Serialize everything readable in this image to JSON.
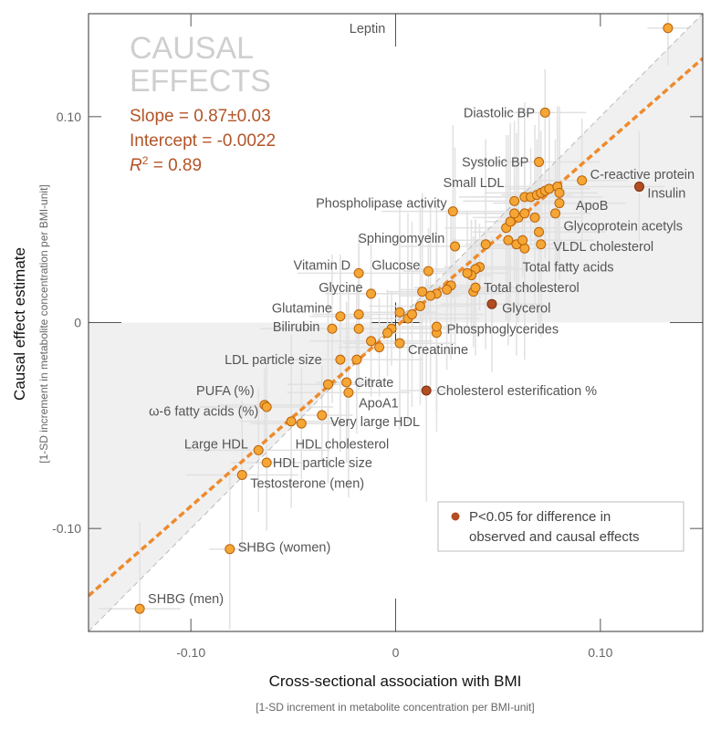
{
  "chart_data": {
    "type": "scatter",
    "xlabel": "Cross-sectional association with BMI",
    "xlabel_sub": "[1-SD increment in metabolite concentration per BMI-unit]",
    "ylabel": "Causal effect estimate",
    "ylabel_sub": "[1-SD increment in metabolite concentration per BMI-unit]",
    "xlim": [
      -0.15,
      0.15
    ],
    "ylim": [
      -0.15,
      0.15
    ],
    "x_ticks": [
      {
        "v": -0.1,
        "label": "-0.10"
      },
      {
        "v": 0,
        "label": "0"
      },
      {
        "v": 0.1,
        "label": "0.10"
      }
    ],
    "y_ticks": [
      {
        "v": 0.1,
        "label": "0.10"
      },
      {
        "v": 0,
        "label": "0"
      },
      {
        "v": -0.1,
        "label": "-0.10"
      }
    ],
    "annotation": {
      "title_line1": "CAUSAL",
      "title_line2": "EFFECTS",
      "slope": "Slope = 0.87±0.03",
      "intercept": "Intercept = -0.0022",
      "r2_prefix": "R",
      "r2_sup": "2",
      "r2_value": " = 0.89"
    },
    "legend": {
      "line1": "P<0.05 for difference in",
      "line2": "observed and causal effects",
      "position": "bottom-right"
    },
    "regression": {
      "slope": 0.87,
      "intercept": -0.0022
    },
    "identity_line": true,
    "colors": {
      "point_fill": "#f5a634",
      "point_stroke": "#b8620c",
      "significant_fill": "#b34d22",
      "regression": "#ee8a2c",
      "annotation_text": "#b35428",
      "title_text": "#cfcfcf",
      "label_text": "#555555",
      "shade": "#f0f0f0"
    },
    "points": [
      {
        "x": 0.133,
        "y": 0.143,
        "label": "Leptin",
        "lx": -0.005,
        "ly": 0.143,
        "anchor": "end"
      },
      {
        "x": 0.073,
        "y": 0.102,
        "label": "Diastolic BP",
        "lx": 0.068,
        "ly": 0.102,
        "anchor": "end"
      },
      {
        "x": 0.07,
        "y": 0.078,
        "label": "Systolic BP",
        "lx": 0.065,
        "ly": 0.078,
        "anchor": "end"
      },
      {
        "x": 0.119,
        "y": 0.066,
        "label": "Insulin",
        "sig": true,
        "lx": 0.123,
        "ly": 0.063,
        "anchor": "start"
      },
      {
        "x": 0.091,
        "y": 0.069,
        "label": "C-reactive protein",
        "lx": 0.095,
        "ly": 0.072,
        "anchor": "start"
      },
      {
        "x": 0.08,
        "y": 0.058,
        "label": "ApoB",
        "lx": 0.088,
        "ly": 0.057,
        "anchor": "start"
      },
      {
        "x": 0.078,
        "y": 0.053,
        "label": "Glycoprotein acetyls",
        "lx": 0.082,
        "ly": 0.047,
        "anchor": "start"
      },
      {
        "x": 0.058,
        "y": 0.059,
        "label": "Small LDL",
        "lx": 0.053,
        "ly": 0.068,
        "anchor": "end"
      },
      {
        "x": 0.028,
        "y": 0.054,
        "label": "Phospholipase activity",
        "lx": 0.025,
        "ly": 0.058,
        "anchor": "end"
      },
      {
        "x": 0.071,
        "y": 0.038,
        "label": "VLDL cholesterol",
        "lx": 0.077,
        "ly": 0.037,
        "anchor": "start"
      },
      {
        "x": 0.029,
        "y": 0.037,
        "label": "Sphingomyelin",
        "lx": 0.024,
        "ly": 0.041,
        "anchor": "end"
      },
      {
        "x": 0.044,
        "y": 0.038,
        "label": "",
        "lx": 0,
        "ly": 0
      },
      {
        "x": 0.063,
        "y": 0.036,
        "label": "Total fatty acids",
        "lx": 0.062,
        "ly": 0.027,
        "anchor": "start"
      },
      {
        "x": -0.018,
        "y": 0.024,
        "label": "Vitamin D",
        "lx": -0.022,
        "ly": 0.028,
        "anchor": "end"
      },
      {
        "x": 0.016,
        "y": 0.025,
        "label": "Glucose",
        "lx": 0.012,
        "ly": 0.028,
        "anchor": "end"
      },
      {
        "x": -0.012,
        "y": 0.014,
        "label": "Glycine",
        "lx": -0.016,
        "ly": 0.017,
        "anchor": "end"
      },
      {
        "x": 0.038,
        "y": 0.015,
        "label": "Total cholesterol",
        "lx": 0.043,
        "ly": 0.017,
        "anchor": "start"
      },
      {
        "x": -0.027,
        "y": 0.003,
        "label": "Glutamine",
        "lx": -0.031,
        "ly": 0.007,
        "anchor": "end"
      },
      {
        "x": 0.047,
        "y": 0.009,
        "label": "Glycerol",
        "sig": true,
        "lx": 0.052,
        "ly": 0.007,
        "anchor": "start"
      },
      {
        "x": -0.031,
        "y": -0.003,
        "label": "Bilirubin",
        "lx": -0.037,
        "ly": -0.002,
        "anchor": "end"
      },
      {
        "x": 0.02,
        "y": -0.005,
        "label": "Phosphoglycerides",
        "lx": 0.025,
        "ly": -0.003,
        "anchor": "start"
      },
      {
        "x": 0.002,
        "y": -0.01,
        "label": "Creatinine",
        "lx": 0.006,
        "ly": -0.013,
        "anchor": "start"
      },
      {
        "x": -0.027,
        "y": -0.018,
        "label": "LDL particle size",
        "lx": -0.036,
        "ly": -0.018,
        "anchor": "end"
      },
      {
        "x": -0.033,
        "y": -0.03,
        "label": "Citrate",
        "lx": -0.02,
        "ly": -0.029,
        "anchor": "start"
      },
      {
        "x": -0.023,
        "y": -0.034,
        "label": "ApoA1",
        "lx": -0.018,
        "ly": -0.039,
        "anchor": "start"
      },
      {
        "x": 0.015,
        "y": -0.033,
        "label": "Cholesterol esterification %",
        "sig": true,
        "lx": 0.02,
        "ly": -0.033,
        "anchor": "start"
      },
      {
        "x": -0.064,
        "y": -0.04,
        "label": "PUFA (%)",
        "lx": -0.069,
        "ly": -0.033,
        "anchor": "end"
      },
      {
        "x": -0.063,
        "y": -0.041,
        "label": "ω-6 fatty acids (%)",
        "lx": -0.067,
        "ly": -0.043,
        "anchor": "end"
      },
      {
        "x": -0.036,
        "y": -0.045,
        "label": "Very large HDL",
        "lx": -0.032,
        "ly": -0.048,
        "anchor": "start"
      },
      {
        "x": -0.046,
        "y": -0.049,
        "label": "HDL cholesterol",
        "lx": -0.049,
        "ly": -0.059,
        "anchor": "start"
      },
      {
        "x": -0.067,
        "y": -0.062,
        "label": "Large HDL",
        "lx": -0.072,
        "ly": -0.059,
        "anchor": "end"
      },
      {
        "x": -0.063,
        "y": -0.068,
        "label": "HDL particle size",
        "lx": -0.06,
        "ly": -0.068,
        "anchor": "start"
      },
      {
        "x": -0.075,
        "y": -0.074,
        "label": "Testosterone (men)",
        "lx": -0.071,
        "ly": -0.078,
        "anchor": "start"
      },
      {
        "x": -0.081,
        "y": -0.11,
        "label": "SHBG (women)",
        "lx": -0.077,
        "ly": -0.109,
        "anchor": "start"
      },
      {
        "x": -0.125,
        "y": -0.139,
        "label": "SHBG (men)",
        "lx": -0.121,
        "ly": -0.134,
        "anchor": "start"
      },
      {
        "x": 0.054,
        "y": 0.046,
        "label": ""
      },
      {
        "x": 0.056,
        "y": 0.049,
        "label": ""
      },
      {
        "x": 0.06,
        "y": 0.051,
        "label": ""
      },
      {
        "x": 0.063,
        "y": 0.053,
        "label": ""
      },
      {
        "x": 0.058,
        "y": 0.053,
        "label": ""
      },
      {
        "x": 0.063,
        "y": 0.061,
        "label": ""
      },
      {
        "x": 0.066,
        "y": 0.061,
        "label": ""
      },
      {
        "x": 0.069,
        "y": 0.062,
        "label": ""
      },
      {
        "x": 0.071,
        "y": 0.063,
        "label": ""
      },
      {
        "x": 0.073,
        "y": 0.064,
        "label": ""
      },
      {
        "x": 0.075,
        "y": 0.065,
        "label": ""
      },
      {
        "x": 0.079,
        "y": 0.066,
        "label": ""
      },
      {
        "x": 0.08,
        "y": 0.063,
        "label": ""
      },
      {
        "x": 0.068,
        "y": 0.051,
        "label": ""
      },
      {
        "x": 0.07,
        "y": 0.044,
        "label": ""
      },
      {
        "x": 0.055,
        "y": 0.04,
        "label": ""
      },
      {
        "x": 0.059,
        "y": 0.038,
        "label": ""
      },
      {
        "x": 0.062,
        "y": 0.04,
        "label": ""
      },
      {
        "x": 0.041,
        "y": 0.027,
        "label": ""
      },
      {
        "x": 0.039,
        "y": 0.026,
        "label": ""
      },
      {
        "x": 0.037,
        "y": 0.023,
        "label": ""
      },
      {
        "x": 0.035,
        "y": 0.024,
        "label": ""
      },
      {
        "x": 0.039,
        "y": 0.017,
        "label": ""
      },
      {
        "x": 0.027,
        "y": 0.018,
        "label": ""
      },
      {
        "x": 0.025,
        "y": 0.016,
        "label": ""
      },
      {
        "x": 0.02,
        "y": 0.014,
        "label": ""
      },
      {
        "x": 0.017,
        "y": 0.013,
        "label": ""
      },
      {
        "x": 0.012,
        "y": 0.008,
        "label": ""
      },
      {
        "x": 0.006,
        "y": 0.002,
        "label": ""
      },
      {
        "x": 0.002,
        "y": 0.005,
        "label": ""
      },
      {
        "x": -0.002,
        "y": -0.003,
        "label": ""
      },
      {
        "x": -0.004,
        "y": -0.005,
        "label": ""
      },
      {
        "x": -0.008,
        "y": -0.012,
        "label": ""
      },
      {
        "x": -0.012,
        "y": -0.009,
        "label": ""
      },
      {
        "x": -0.018,
        "y": -0.003,
        "label": ""
      },
      {
        "x": -0.018,
        "y": 0.004,
        "label": ""
      },
      {
        "x": -0.019,
        "y": -0.018,
        "label": ""
      },
      {
        "x": -0.024,
        "y": -0.029,
        "label": ""
      },
      {
        "x": -0.051,
        "y": -0.048,
        "label": ""
      },
      {
        "x": 0.008,
        "y": 0.004,
        "label": ""
      },
      {
        "x": 0.013,
        "y": 0.015,
        "label": ""
      },
      {
        "x": 0.02,
        "y": -0.002,
        "label": ""
      }
    ]
  }
}
